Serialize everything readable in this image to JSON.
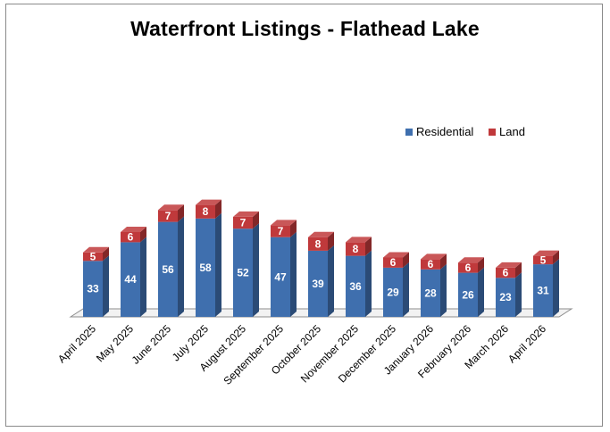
{
  "chart_data": {
    "type": "bar",
    "stacked": true,
    "three_d": true,
    "title": "Waterfront Listings - Flathead Lake",
    "categories": [
      "April 2025",
      "May 2025",
      "June 2025",
      "July 2025",
      "August 2025",
      "September 2025",
      "October 2025",
      "November 2025",
      "December 2025",
      "January 2026",
      "February 2026",
      "March 2026",
      "April 2026"
    ],
    "series": [
      {
        "name": "Residential",
        "color": "#3f6fae",
        "values": [
          33,
          44,
          56,
          58,
          52,
          47,
          39,
          36,
          29,
          28,
          26,
          23,
          31
        ]
      },
      {
        "name": "Land",
        "color": "#c0393b",
        "values": [
          5,
          6,
          7,
          8,
          7,
          7,
          8,
          8,
          6,
          6,
          6,
          6,
          5
        ]
      }
    ],
    "xlabel": "",
    "ylabel": "",
    "ylim": [
      0,
      68
    ],
    "grid": false,
    "legend_position": "top-right",
    "data_labels": true
  }
}
